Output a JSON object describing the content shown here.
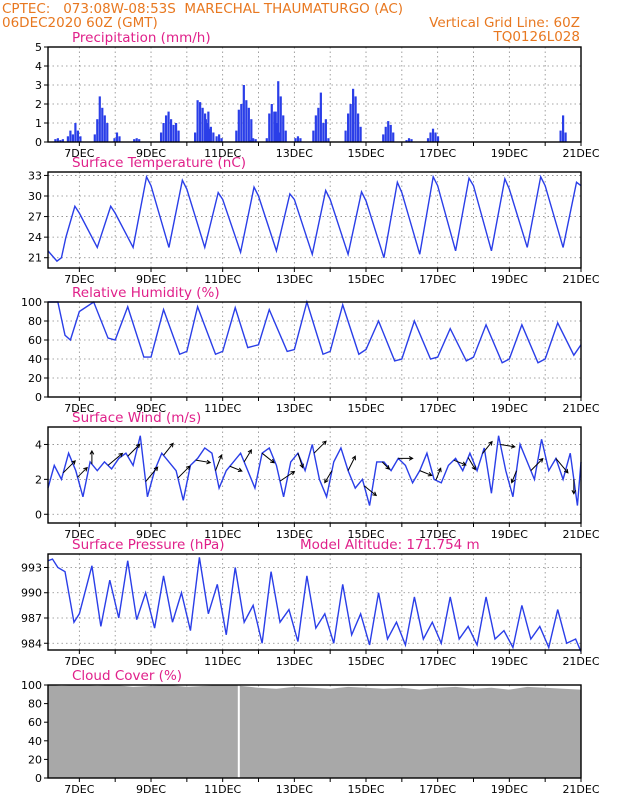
{
  "header": {
    "line1_left": "CPTEC:   073:08W-08:53S  MARECHAL THAUMATURGO (AC)",
    "line2_left": "06DEC2020 60Z (GMT)",
    "line2_right": "Vertical Grid Line: 60Z",
    "line3_right": "TQ0126L028"
  },
  "colors": {
    "series": "#2a3ee8",
    "cloud": "#a8a8a8",
    "title": "#e0208a",
    "header": "#e87820"
  },
  "x_axis": {
    "labels": [
      "7DEC",
      "9DEC",
      "11DEC",
      "13DEC",
      "15DEC",
      "17DEC",
      "19DEC",
      "21DEC"
    ],
    "start_day": 6.125,
    "end_day": 21.0
  },
  "chart_data": [
    {
      "type": "bar",
      "title": "Precipitation (mm/h)",
      "ylim": [
        0,
        5
      ],
      "yticks": [
        0,
        1,
        2,
        3,
        4,
        5
      ],
      "bursts": [
        {
          "day": 6.3,
          "amps": [
            0.15,
            0.2,
            0.1,
            0.15
          ]
        },
        {
          "day": 6.65,
          "amps": [
            0.3,
            0.6,
            0.4,
            1.0,
            0.6,
            0.3
          ]
        },
        {
          "day": 7.4,
          "amps": [
            0.4,
            1.2,
            2.4,
            1.8,
            1.4,
            1.0
          ]
        },
        {
          "day": 7.95,
          "amps": [
            0.2,
            0.5,
            0.3
          ]
        },
        {
          "day": 8.5,
          "amps": [
            0.15,
            0.2,
            0.15
          ]
        },
        {
          "day": 9.25,
          "amps": [
            0.5,
            1.0,
            1.4,
            1.6,
            1.2,
            0.9,
            1.0,
            0.6
          ]
        },
        {
          "day": 10.2,
          "amps": [
            0.5,
            2.2,
            2.1,
            1.8,
            1.5,
            1.0,
            0.7
          ]
        },
        {
          "day": 10.5,
          "amps": [
            1.2,
            1.6,
            0.8,
            0.5
          ]
        },
        {
          "day": 10.8,
          "amps": [
            0.3,
            0.4,
            0.2
          ]
        },
        {
          "day": 11.35,
          "amps": [
            0.6,
            1.7,
            2.0,
            3.0,
            2.2,
            1.8,
            1.2
          ]
        },
        {
          "day": 11.75,
          "amps": [
            0.1,
            0.2,
            0.15
          ]
        },
        {
          "day": 12.2,
          "amps": [
            0.2,
            1.5,
            2.0,
            1.6,
            1.0,
            0.5
          ]
        },
        {
          "day": 12.45,
          "amps": [
            1.6,
            3.2,
            2.4,
            1.4,
            0.6
          ]
        },
        {
          "day": 13.0,
          "amps": [
            0.2,
            0.3,
            0.2
          ]
        },
        {
          "day": 13.5,
          "amps": [
            0.6,
            1.4,
            1.8,
            2.6,
            1.0,
            1.2
          ]
        },
        {
          "day": 13.85,
          "amps": [
            0.1,
            0.2
          ]
        },
        {
          "day": 14.4,
          "amps": [
            0.6,
            1.5,
            2.0,
            2.8,
            2.4,
            1.5,
            0.8
          ]
        },
        {
          "day": 15.45,
          "amps": [
            0.4,
            0.8,
            1.1,
            0.9,
            0.5
          ]
        },
        {
          "day": 16.1,
          "amps": [
            0.1,
            0.2,
            0.15
          ]
        },
        {
          "day": 16.7,
          "amps": [
            0.2,
            0.5,
            0.7,
            0.5,
            0.3
          ]
        },
        {
          "day": 20.4,
          "amps": [
            0.6,
            1.4,
            0.5
          ]
        }
      ]
    },
    {
      "type": "line",
      "title": "Surface Temperature (nC)",
      "ylim": [
        19.5,
        33.5
      ],
      "yticks": [
        21,
        24,
        27,
        30,
        33
      ],
      "x": [
        6.125,
        6.375,
        6.5,
        6.625,
        6.875,
        7.0,
        7.5,
        7.875,
        8.0,
        8.5,
        8.875,
        9.0,
        9.5,
        9.875,
        10.0,
        10.5,
        10.875,
        11.0,
        11.5,
        11.875,
        12.0,
        12.5,
        12.875,
        13.0,
        13.5,
        13.875,
        14.0,
        14.5,
        14.875,
        15.0,
        15.5,
        15.875,
        16.0,
        16.5,
        16.875,
        17.0,
        17.5,
        17.875,
        18.0,
        18.5,
        18.875,
        19.0,
        19.5,
        19.875,
        20.0,
        20.5,
        20.875,
        21.0
      ],
      "y": [
        22.0,
        20.5,
        21.0,
        24.0,
        28.5,
        27.5,
        22.5,
        28.5,
        27.5,
        22.5,
        32.8,
        31.5,
        22.5,
        32.3,
        31.0,
        22.5,
        30.5,
        29.5,
        21.8,
        31.3,
        30.0,
        22.0,
        30.3,
        29.5,
        21.5,
        30.8,
        29.5,
        21.5,
        30.6,
        29.3,
        21.0,
        32.0,
        30.5,
        21.5,
        32.8,
        31.5,
        22.0,
        32.6,
        31.5,
        22.0,
        32.5,
        31.0,
        22.5,
        32.8,
        31.5,
        22.5,
        32.0,
        31.5
      ]
    },
    {
      "type": "line",
      "title": "Relative Humidity (%)",
      "ylim": [
        0,
        100
      ],
      "yticks": [
        0,
        20,
        40,
        60,
        80,
        100
      ],
      "x": [
        6.125,
        6.4,
        6.6,
        6.75,
        7.0,
        7.4,
        7.8,
        8.0,
        8.35,
        8.8,
        9.0,
        9.35,
        9.8,
        10.0,
        10.3,
        10.8,
        11.0,
        11.35,
        11.7,
        12.0,
        12.3,
        12.8,
        13.0,
        13.35,
        13.8,
        14.0,
        14.35,
        14.8,
        15.0,
        15.35,
        15.8,
        16.0,
        16.35,
        16.8,
        17.0,
        17.35,
        17.8,
        18.0,
        18.35,
        18.8,
        19.0,
        19.35,
        19.8,
        20.0,
        20.35,
        20.8,
        21.0
      ],
      "y": [
        100,
        100,
        65,
        60,
        90,
        100,
        62,
        60,
        95,
        42,
        42,
        92,
        45,
        48,
        95,
        45,
        48,
        94,
        52,
        55,
        92,
        48,
        50,
        100,
        45,
        48,
        97,
        45,
        50,
        80,
        38,
        40,
        80,
        40,
        42,
        72,
        38,
        42,
        76,
        36,
        40,
        76,
        36,
        40,
        78,
        44,
        55
      ]
    },
    {
      "type": "line",
      "title": "Surface Wind (m/s)",
      "ylim": [
        -0.5,
        5
      ],
      "yticks": [
        0,
        2,
        4
      ],
      "x": [
        6.125,
        6.3,
        6.5,
        6.7,
        6.9,
        7.1,
        7.3,
        7.5,
        7.7,
        7.9,
        8.1,
        8.3,
        8.5,
        8.7,
        8.9,
        9.1,
        9.3,
        9.5,
        9.7,
        9.9,
        10.1,
        10.3,
        10.5,
        10.7,
        10.9,
        11.1,
        11.3,
        11.5,
        11.7,
        11.9,
        12.1,
        12.3,
        12.5,
        12.7,
        12.9,
        13.1,
        13.3,
        13.5,
        13.7,
        13.9,
        14.1,
        14.3,
        14.5,
        14.7,
        14.9,
        15.1,
        15.3,
        15.5,
        15.7,
        15.9,
        16.1,
        16.3,
        16.5,
        16.7,
        16.9,
        17.1,
        17.3,
        17.5,
        17.7,
        17.9,
        18.1,
        18.3,
        18.5,
        18.7,
        18.9,
        19.1,
        19.3,
        19.5,
        19.7,
        19.9,
        20.1,
        20.3,
        20.5,
        20.7,
        20.9,
        21.0
      ],
      "y": [
        1.5,
        2.8,
        2.0,
        3.5,
        2.5,
        1.0,
        3.0,
        2.5,
        3.0,
        2.6,
        3.2,
        3.5,
        2.8,
        4.5,
        1.0,
        2.5,
        3.5,
        3.0,
        2.5,
        0.8,
        2.8,
        3.2,
        3.8,
        3.5,
        1.5,
        2.5,
        3.0,
        3.5,
        2.5,
        1.5,
        3.5,
        3.8,
        2.8,
        1.0,
        3.0,
        3.5,
        2.5,
        4.0,
        2.0,
        1.0,
        3.0,
        3.8,
        2.5,
        1.5,
        2.0,
        0.5,
        3.0,
        3.0,
        2.5,
        3.2,
        2.8,
        1.8,
        2.5,
        3.5,
        2.0,
        1.8,
        2.8,
        3.2,
        2.5,
        3.5,
        2.5,
        3.8,
        1.2,
        4.5,
        2.5,
        1.0,
        4.0,
        3.0,
        2.0,
        4.3,
        2.5,
        3.2,
        2.0,
        3.5,
        0.5,
        3.0
      ],
      "arrows": [
        {
          "day": 6.55,
          "dx": 1.0,
          "dy": 1.0
        },
        {
          "day": 6.95,
          "dx": 0.8,
          "dy": 0.8
        },
        {
          "day": 7.35,
          "dx": 0.0,
          "dy": 1.1
        },
        {
          "day": 7.8,
          "dx": 1.2,
          "dy": 1.0
        },
        {
          "day": 8.35,
          "dx": 1.0,
          "dy": 1.0
        },
        {
          "day": 8.85,
          "dx": 1.0,
          "dy": 1.2
        },
        {
          "day": 9.35,
          "dx": 0.8,
          "dy": 1.0
        },
        {
          "day": 9.75,
          "dx": 1.0,
          "dy": 1.0
        },
        {
          "day": 10.25,
          "dx": 1.2,
          "dy": -0.2
        },
        {
          "day": 10.8,
          "dx": 0.5,
          "dy": 1.3
        },
        {
          "day": 11.2,
          "dx": 1.0,
          "dy": -0.4
        },
        {
          "day": 11.6,
          "dx": 0.6,
          "dy": 1.0
        },
        {
          "day": 12.1,
          "dx": 1.0,
          "dy": -0.8
        },
        {
          "day": 12.6,
          "dx": 1.2,
          "dy": 0.8
        },
        {
          "day": 13.1,
          "dx": 0.4,
          "dy": -1.2
        },
        {
          "day": 13.55,
          "dx": 1.0,
          "dy": 1.0
        },
        {
          "day": 14.05,
          "dx": -0.6,
          "dy": -1.0
        },
        {
          "day": 14.5,
          "dx": 0.6,
          "dy": 1.2
        },
        {
          "day": 14.95,
          "dx": 1.0,
          "dy": -0.8
        },
        {
          "day": 15.45,
          "dx": 0.6,
          "dy": -0.6
        },
        {
          "day": 15.9,
          "dx": 1.2,
          "dy": 0.0
        },
        {
          "day": 16.5,
          "dx": 1.0,
          "dy": -0.4
        },
        {
          "day": 16.95,
          "dx": 0.4,
          "dy": 1.0
        },
        {
          "day": 17.45,
          "dx": 1.0,
          "dy": -0.4
        },
        {
          "day": 17.85,
          "dx": 0.6,
          "dy": -1.0
        },
        {
          "day": 18.25,
          "dx": 0.8,
          "dy": 1.0
        },
        {
          "day": 18.75,
          "dx": 1.2,
          "dy": -0.2
        },
        {
          "day": 19.2,
          "dx": -0.4,
          "dy": -1.0
        },
        {
          "day": 19.6,
          "dx": 1.0,
          "dy": 1.0
        },
        {
          "day": 20.3,
          "dx": 1.0,
          "dy": -1.2
        },
        {
          "day": 20.8,
          "dx": 0.0,
          "dy": -1.2
        }
      ]
    },
    {
      "type": "line",
      "title": "Surface Pressure (hPa)",
      "annotation": "Model Altitude: 171.754 m",
      "ylim": [
        983.2,
        994.6
      ],
      "yticks": [
        984,
        987,
        990,
        993
      ],
      "x": [
        6.125,
        6.25,
        6.4,
        6.6,
        6.85,
        7.0,
        7.35,
        7.6,
        7.85,
        8.1,
        8.35,
        8.6,
        8.85,
        9.1,
        9.35,
        9.6,
        9.85,
        10.1,
        10.35,
        10.6,
        10.85,
        11.1,
        11.35,
        11.6,
        11.85,
        12.1,
        12.35,
        12.6,
        12.85,
        13.1,
        13.35,
        13.6,
        13.85,
        14.1,
        14.35,
        14.6,
        14.85,
        15.1,
        15.35,
        15.6,
        15.85,
        16.1,
        16.35,
        16.6,
        16.85,
        17.1,
        17.35,
        17.6,
        17.85,
        18.1,
        18.35,
        18.6,
        18.85,
        19.1,
        19.35,
        19.6,
        19.85,
        20.1,
        20.35,
        20.6,
        20.85,
        21.0
      ],
      "y": [
        993.8,
        994.0,
        993.0,
        992.5,
        986.5,
        987.5,
        993.2,
        986.0,
        991.5,
        987.0,
        993.8,
        986.8,
        990.0,
        985.8,
        992.0,
        986.5,
        990.0,
        985.5,
        994.2,
        987.5,
        991.0,
        985.0,
        993.0,
        986.5,
        988.5,
        984.0,
        992.5,
        986.5,
        988.0,
        984.2,
        992.0,
        985.8,
        987.5,
        984.0,
        991.0,
        985.0,
        987.5,
        983.8,
        990.0,
        984.5,
        986.5,
        983.8,
        989.5,
        984.5,
        986.5,
        984.0,
        989.5,
        984.5,
        986.0,
        983.8,
        989.5,
        984.5,
        985.5,
        983.5,
        988.5,
        984.5,
        986.0,
        983.5,
        988.0,
        984.0,
        984.5,
        983.0
      ]
    },
    {
      "type": "area",
      "title": "Cloud Cover (%)",
      "ylim": [
        0,
        100
      ],
      "yticks": [
        0,
        20,
        40,
        60,
        80,
        100
      ],
      "gap_day": 11.45,
      "x": [
        6.125,
        6.5,
        7.0,
        7.5,
        8.0,
        8.5,
        9.0,
        9.5,
        10.0,
        10.5,
        11.0,
        11.45,
        11.5,
        12.0,
        12.5,
        13.0,
        13.5,
        14.0,
        14.5,
        15.0,
        15.5,
        16.0,
        16.5,
        17.0,
        17.5,
        18.0,
        18.5,
        19.0,
        19.5,
        20.0,
        20.5,
        21.0
      ],
      "y": [
        100,
        99,
        100,
        99,
        100,
        98,
        99,
        100,
        98,
        99,
        100,
        100,
        99,
        97,
        96,
        98,
        97,
        96,
        98,
        97,
        96,
        97,
        95,
        97,
        98,
        96,
        97,
        95,
        98,
        97,
        96,
        95
      ]
    }
  ]
}
